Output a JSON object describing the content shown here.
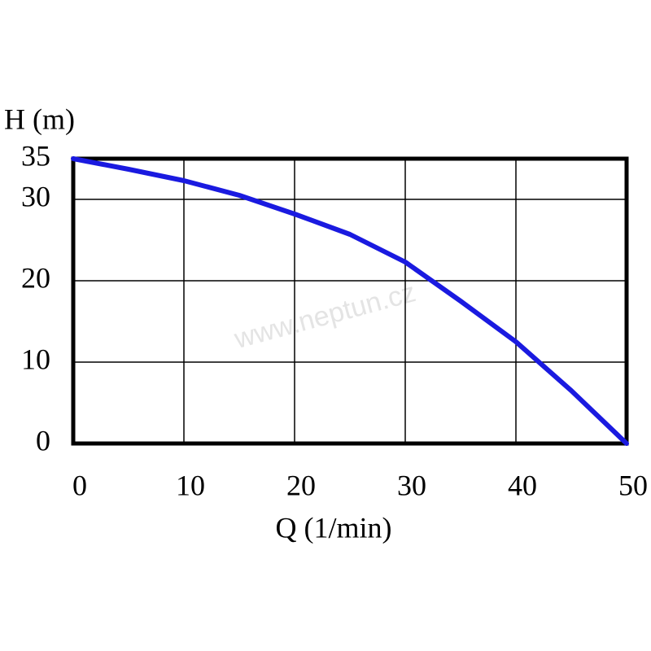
{
  "chart_data": {
    "type": "line",
    "y_label": "H (m)",
    "x_label": "Q (1/min)",
    "watermark": "www.neptun.cz",
    "x": [
      0,
      5,
      10,
      15,
      20,
      25,
      30,
      35,
      40,
      45,
      50
    ],
    "series": [
      {
        "name": "H",
        "color": "#1a1ae0",
        "values": [
          35,
          33.7,
          32.3,
          30.5,
          28.2,
          25.7,
          22.3,
          17.5,
          12.5,
          6.5,
          0
        ]
      }
    ],
    "xlim": [
      0,
      50
    ],
    "xticks": [
      0,
      10,
      20,
      30,
      40,
      50
    ],
    "ylim": [
      0,
      35
    ],
    "yticks": [
      0,
      10,
      20,
      30,
      35
    ],
    "grid": true
  }
}
